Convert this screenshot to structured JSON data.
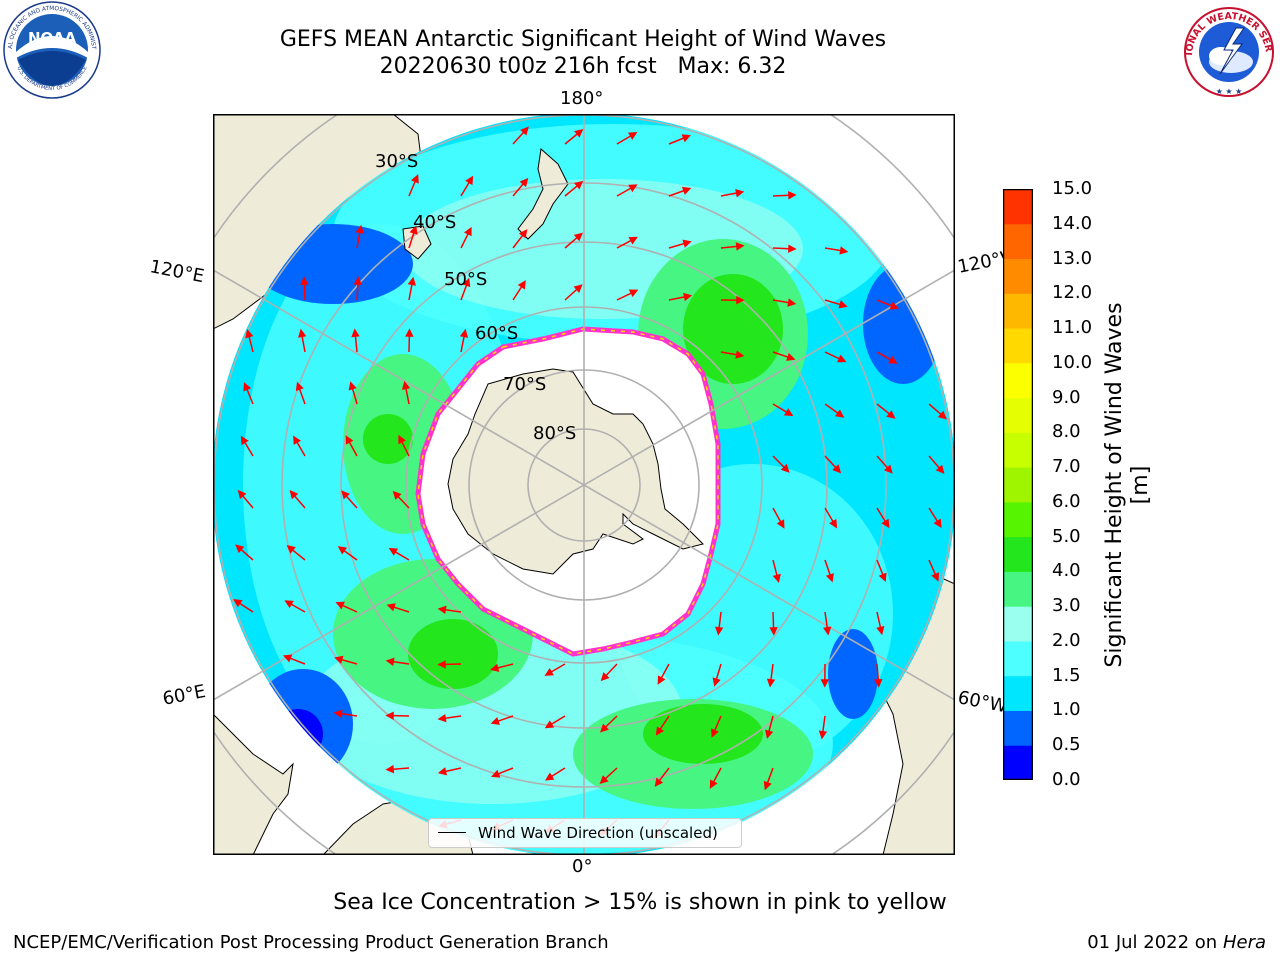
{
  "title": {
    "line1": "GEFS MEAN Antarctic Significant Height of Wind Waves",
    "line2": "20220630 t00z 216h fcst   Max: 6.32"
  },
  "logos": {
    "left": {
      "name": "noaa-logo",
      "text": "NOAA",
      "ring_text": "NATIONAL OCEANIC AND ATMOSPHERIC ADMINISTRATION",
      "bottom_text": "U.S. DEPARTMENT OF COMMERCE"
    },
    "right": {
      "name": "nws-logo",
      "ring_text": "NATIONAL WEATHER SERVICE"
    }
  },
  "map": {
    "projection": "south polar stereographic",
    "longitude_labels": {
      "top": "180°",
      "bottom": "0°",
      "left_upper": "120°E",
      "left_lower": "60°E",
      "right_upper": "120°W",
      "right_lower": "60°W"
    },
    "latitude_labels": [
      "30°S",
      "40°S",
      "50°S",
      "60°S",
      "70°S",
      "80°S"
    ],
    "land_color": "#efebd9",
    "ice_color": "#ffffff",
    "arrow_color": "#ff0000",
    "grid_color": "#b0b0b0"
  },
  "legend": {
    "label": "Wind Wave Direction (unscaled)"
  },
  "colorbar": {
    "label": "Significant Height of Wind Waves [m]",
    "ticks": [
      "15.0",
      "14.0",
      "13.0",
      "12.0",
      "11.0",
      "10.0",
      "9.0",
      "8.0",
      "7.0",
      "6.0",
      "5.0",
      "4.0",
      "3.0",
      "2.0",
      "1.5",
      "1.0",
      "0.5",
      "0.0"
    ],
    "colors": [
      "#0000ff",
      "#0066ff",
      "#00e6ff",
      "#4dffff",
      "#9bfff0",
      "#46f582",
      "#23e61c",
      "#57f400",
      "#9ff500",
      "#c8ff00",
      "#e6ff00",
      "#fcff00",
      "#ffd900",
      "#ffb800",
      "#ff8c00",
      "#ff6600",
      "#ff3300",
      "#ff0000"
    ]
  },
  "caption": "Sea Ice Concentration > 15% is shown in pink to yellow",
  "footer": {
    "credit": "NCEP/EMC/Verification Post Processing Product Generation Branch",
    "date_prefix": "01 Jul 2022 on ",
    "machine": "Hera"
  }
}
